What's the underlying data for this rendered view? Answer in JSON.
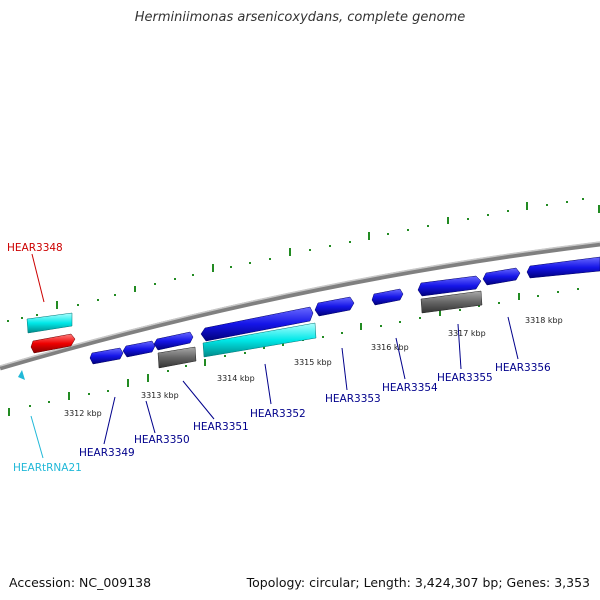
{
  "title": "Herminiimonas arsenicoxydans, complete genome",
  "footer": {
    "accession": "Accession: NC_009138",
    "topology": "Topology: circular; Length: 3,424,307 bp; Genes: 3,353"
  },
  "colors": {
    "blue": "#1010e0",
    "cyan": "#00e0e0",
    "red": "#e00000",
    "gray": "#666666",
    "tick_green": "#228b22",
    "label_blue": "#00008b",
    "label_red": "#cc0000",
    "label_cyan": "#20b8d8"
  },
  "tick_labels": [
    "3312 kbp",
    "3313 kbp",
    "3314 kbp",
    "3315 kbp",
    "3316 kbp",
    "3317 kbp",
    "3318 kbp"
  ],
  "gene_labels": {
    "hear3348": "HEAR3348",
    "heartrna21": "HEARtRNA21",
    "hear3349": "HEAR3349",
    "hear3350": "HEAR3350",
    "hear3351": "HEAR3351",
    "hear3352": "HEAR3352",
    "hear3353": "HEAR3353",
    "hear3354": "HEAR3354",
    "hear3355": "HEAR3355",
    "hear3356": "HEAR3356"
  }
}
